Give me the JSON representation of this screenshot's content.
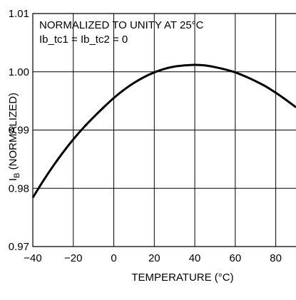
{
  "chart_data": {
    "type": "line",
    "title": "",
    "xlabel": "TEMPERATURE (°C)",
    "ylabel": {
      "main": "I",
      "sub": "B",
      "rest": " (NORMALIZED)"
    },
    "xlim": [
      -40,
      90
    ],
    "ylim": [
      0.97,
      1.01
    ],
    "x_ticks": [
      -40,
      -20,
      0,
      20,
      40,
      60,
      80
    ],
    "x_tick_labels": [
      "−40",
      "−20",
      "0",
      "20",
      "40",
      "60",
      "80"
    ],
    "y_ticks": [
      0.97,
      0.98,
      0.99,
      1.0,
      1.01
    ],
    "y_tick_labels": [
      "0.97",
      "0.98",
      "0.99",
      "1.00",
      "1.01"
    ],
    "grid": true,
    "annotations": [
      "NORMALIZED TO UNITY AT 25°C",
      "Ib_tc1 = Ib_tc2 = 0"
    ],
    "series": [
      {
        "color": "#000000",
        "x": [
          -40,
          -35,
          -30,
          -25,
          -20,
          -15,
          -10,
          -5,
          0,
          5,
          10,
          15,
          20,
          25,
          30,
          35,
          40,
          45,
          50,
          55,
          60,
          65,
          70,
          75,
          80,
          85,
          90
        ],
        "y": [
          0.9784,
          0.9812,
          0.9838,
          0.9862,
          0.9884,
          0.9904,
          0.9922,
          0.9939,
          0.9955,
          0.9969,
          0.9981,
          0.9991,
          0.9999,
          1.0005,
          1.0009,
          1.0011,
          1.0012,
          1.0011,
          1.0008,
          1.0004,
          0.9999,
          0.9992,
          0.9984,
          0.9975,
          0.9964,
          0.9952,
          0.9939
        ]
      }
    ]
  }
}
